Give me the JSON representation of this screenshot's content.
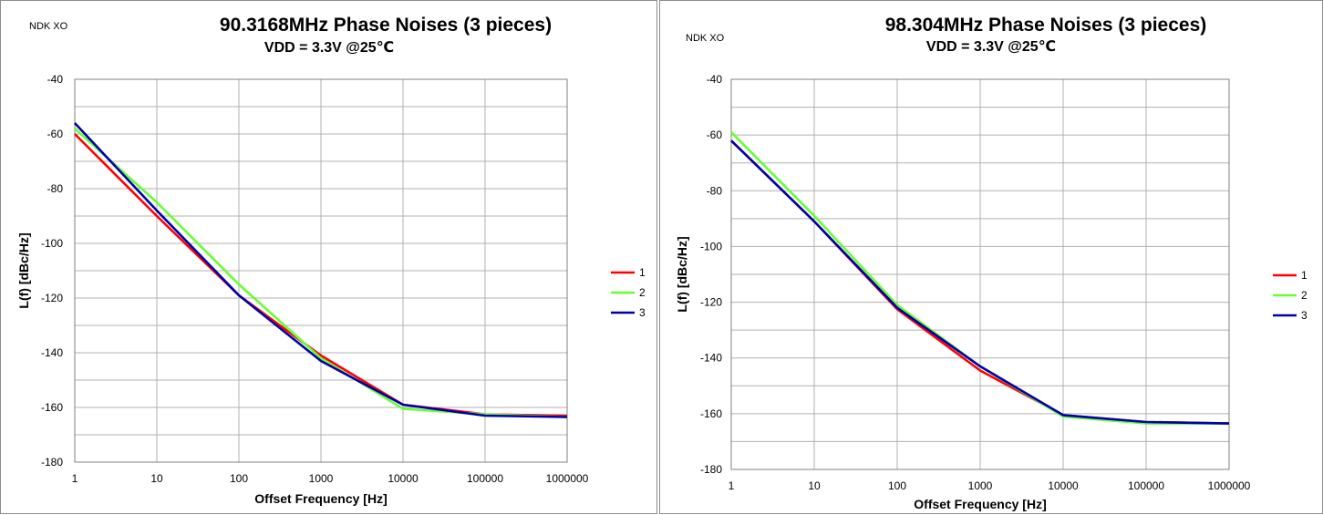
{
  "chart_data": [
    {
      "type": "line",
      "title": "90.3168MHz Phase Noises (3 pieces)",
      "subtitle": "VDD = 3.3V  @25℃",
      "brand": "NDK XO",
      "xlabel": "Offset Frequency [Hz]",
      "ylabel": "L(f) [dBc/Hz]",
      "xscale": "log",
      "xlim": [
        1,
        1000000
      ],
      "ylim": [
        -180,
        -40
      ],
      "xticks": [
        "1",
        "10",
        "100",
        "1000",
        "10000",
        "100000",
        "1000000"
      ],
      "yticks": [
        "-40",
        "-60",
        "-80",
        "-100",
        "-120",
        "-140",
        "-160",
        "-180"
      ],
      "grid": true,
      "legend_position": "right",
      "x": [
        1,
        10,
        100,
        1000,
        10000,
        100000,
        1000000
      ],
      "series": [
        {
          "name": "1",
          "color": "#ff0000",
          "values": [
            -60,
            -90,
            -119,
            -141,
            -159,
            -162.5,
            -163
          ]
        },
        {
          "name": "2",
          "color": "#66ff33",
          "values": [
            -58,
            -85,
            -115,
            -142,
            -160.5,
            -162.5,
            -163.5
          ]
        },
        {
          "name": "3",
          "color": "#0000aa",
          "values": [
            -56,
            -88,
            -119,
            -143,
            -159,
            -163,
            -163.5
          ]
        }
      ]
    },
    {
      "type": "line",
      "title": "98.304MHz Phase Noises (3 pieces)",
      "subtitle": "VDD = 3.3V  @25℃",
      "brand": "NDK XO",
      "xlabel": "Offset Frequency [Hz]",
      "ylabel": "L(f) [dBc/Hz]",
      "xscale": "log",
      "xlim": [
        1,
        1000000
      ],
      "ylim": [
        -180,
        -40
      ],
      "xticks": [
        "1",
        "10",
        "100",
        "1000",
        "10000",
        "100000",
        "1000000"
      ],
      "yticks": [
        "-40",
        "-60",
        "-80",
        "-100",
        "-120",
        "-140",
        "-160",
        "-180"
      ],
      "grid": true,
      "legend_position": "right",
      "x": [
        1,
        10,
        100,
        1000,
        10000,
        100000,
        1000000
      ],
      "series": [
        {
          "name": "1",
          "color": "#ff0000",
          "values": [
            -62,
            -91,
            -122.5,
            -144.5,
            -160.5,
            -163,
            -163.5
          ]
        },
        {
          "name": "2",
          "color": "#66ff33",
          "values": [
            -59,
            -89,
            -121,
            -143,
            -161,
            -163.5,
            -163.5
          ]
        },
        {
          "name": "3",
          "color": "#0000aa",
          "values": [
            -62,
            -91,
            -122,
            -143,
            -160.5,
            -163,
            -163.5
          ]
        }
      ]
    }
  ]
}
